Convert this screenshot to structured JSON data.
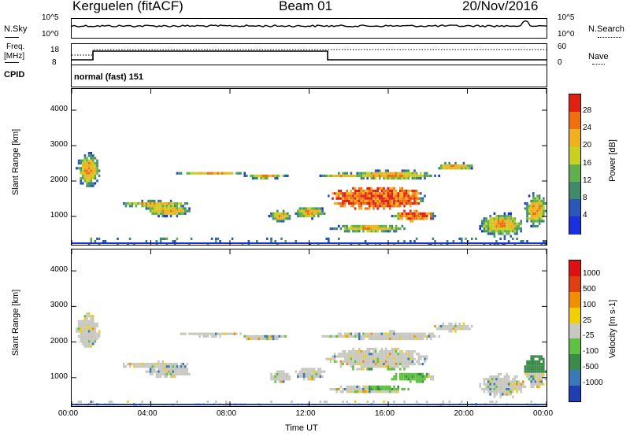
{
  "header": {
    "station": "Kerguelen (fitACF)",
    "beam": "Beam 01",
    "date": "20/Nov/2016"
  },
  "strip": {
    "nsky_label": "N.Sky",
    "nsky_ticks": [
      "10^5",
      "10^0"
    ],
    "nsearch_label": "N.Search",
    "nsearch_ticks": [
      "10^5",
      "10^0"
    ],
    "freq_label_1": "Freq.",
    "freq_label_2": "[MHz]",
    "freq_ticks": [
      "18",
      "8"
    ],
    "nave_label": "Nave",
    "nave_ticks": [
      "60",
      "0"
    ],
    "cpid_label": "CPID",
    "cpid_value": "normal (fast) 151"
  },
  "chart_data": [
    {
      "type": "heatmap",
      "name": "power",
      "ylabel": "Slant Range [km]",
      "yticks": [
        1000,
        2000,
        3000,
        4000
      ],
      "ylim": [
        200,
        4600
      ],
      "xlim": [
        0,
        24
      ],
      "xticks": [
        0,
        4,
        8,
        12,
        16,
        20,
        24
      ],
      "colorbar": {
        "label": "Power [dB]",
        "ticks": [
          "4",
          "8",
          "12",
          "16",
          "20",
          "24",
          "28"
        ],
        "colors": [
          "#1a2fe0",
          "#2a58b8",
          "#3f8a6a",
          "#5fb04a",
          "#c8d020",
          "#f0b020",
          "#f07010",
          "#e02010"
        ]
      }
    },
    {
      "type": "heatmap",
      "name": "velocity",
      "ylabel": "Slant Range [km]",
      "yticks": [
        1000,
        2000,
        3000,
        4000
      ],
      "ylim": [
        200,
        4600
      ],
      "xlim": [
        0,
        24
      ],
      "xticks": [
        0,
        4,
        8,
        12,
        16,
        20,
        24
      ],
      "xlabel": "Time UT",
      "xtick_labels": [
        "00:00",
        "04:00",
        "08:00",
        "12:00",
        "16:00",
        "20:00",
        "00:00"
      ],
      "colorbar": {
        "label": "Velocity [m s-1]",
        "ticks": [
          "1000",
          "500",
          "100",
          "25",
          "-25",
          "-100",
          "-500",
          "-1000"
        ],
        "colors": [
          "#1f3fb0",
          "#3a78b8",
          "#3a8a4a",
          "#60c040",
          "#c8c8c0",
          "#f0d000",
          "#f09000",
          "#e04010",
          "#e01010"
        ]
      }
    }
  ]
}
